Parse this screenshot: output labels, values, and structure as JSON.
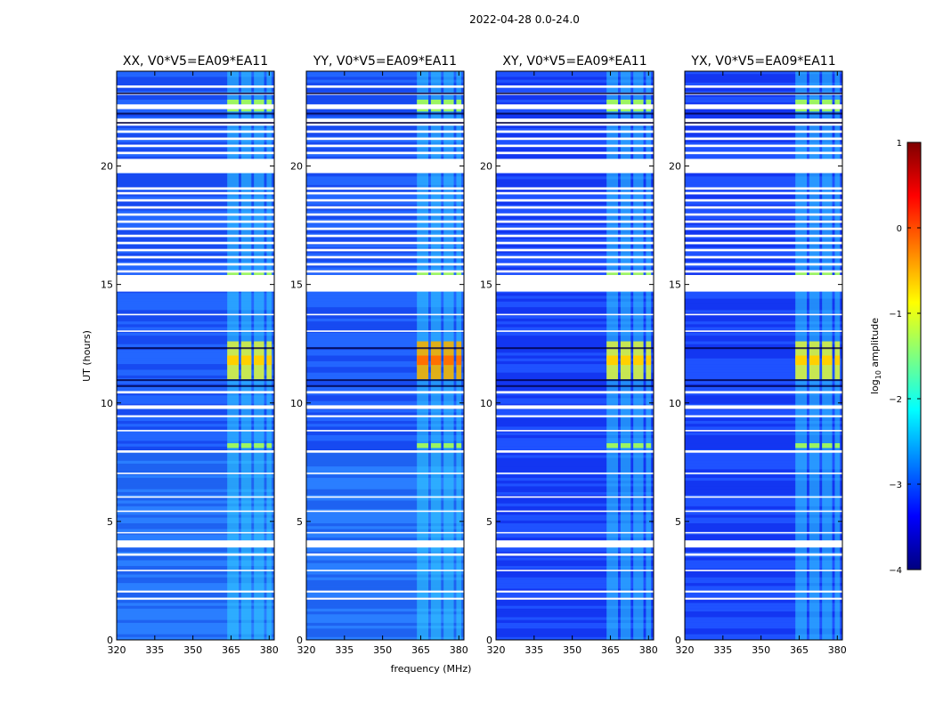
{
  "suptitle": "2022-04-28 0.0-24.0",
  "chart_data": {
    "type": "heatmap",
    "panels": [
      {
        "title": "XX, V0*V5=EA09*EA11"
      },
      {
        "title": "YY, V0*V5=EA09*EA11"
      },
      {
        "title": "XY, V0*V5=EA09*EA11"
      },
      {
        "title": "YX, V0*V5=EA09*EA11"
      }
    ],
    "xlabel": "frequency (MHz)",
    "ylabel": "UT (hours)",
    "xlim": [
      320,
      382
    ],
    "ylim": [
      0,
      24
    ],
    "xticks": [
      "320",
      "335",
      "350",
      "365",
      "380"
    ],
    "xtick_values": [
      320,
      335,
      350,
      365,
      380
    ],
    "yticks": [
      "0",
      "5",
      "10",
      "15",
      "20"
    ],
    "ytick_values": [
      0,
      5,
      10,
      15,
      20
    ],
    "colorbar": {
      "label_prefix": "log",
      "label_sub": "10",
      "label_suffix": " amplitude",
      "range": [
        -4,
        1
      ],
      "ticks": [
        "1",
        "0",
        "−1",
        "−2",
        "−3",
        "−4"
      ],
      "tick_values": [
        1,
        0,
        -1,
        -2,
        -3,
        -4
      ],
      "colormap": "jet",
      "colors": [
        "#00007f",
        "#0000ff",
        "#007fff",
        "#00ffff",
        "#7fff7f",
        "#ffff00",
        "#ff7f00",
        "#ff0000",
        "#7f0000"
      ]
    },
    "flagged_ut_ranges": [
      [
        19.7,
        20.3
      ],
      [
        14.7,
        15.4
      ],
      [
        3.9,
        4.2
      ],
      [
        21.7,
        22.0
      ],
      [
        22.4,
        22.6
      ]
    ],
    "rfi_frequency_bands_mhz": [
      [
        363.5,
        368
      ],
      [
        369,
        373
      ],
      [
        374,
        378
      ],
      [
        379,
        381
      ]
    ],
    "rfi_strong_ut_ranges": [
      [
        11.0,
        12.6
      ],
      [
        8.1,
        8.3
      ],
      [
        22.3,
        22.8
      ],
      [
        15.4,
        15.55
      ]
    ]
  }
}
